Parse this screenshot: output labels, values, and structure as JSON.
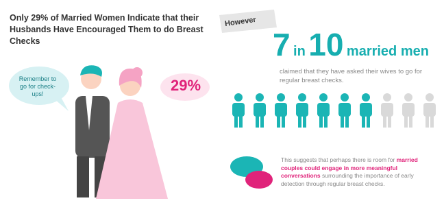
{
  "title": "Only 29% of Married Women Indicate that their Husbands Have Encouraged Them to do Breast Checks",
  "left": {
    "speech": "Remember to go for check-ups!",
    "percent": "29%"
  },
  "right": {
    "banner": "However",
    "stat": {
      "count": 7,
      "in": "in",
      "total": 10,
      "label": "married men"
    },
    "description": "claimed that they have asked their wives to go for regular breast checks.",
    "icon_colors": {
      "active": "#1bb5b5",
      "inactive": "#d9d9d9"
    },
    "note": {
      "before": "This suggests that perhaps there is room for ",
      "highlight": "married couples could engage in more meaningful conversations",
      "after": " surrounding the importance of early detection through regular breast checks."
    }
  }
}
